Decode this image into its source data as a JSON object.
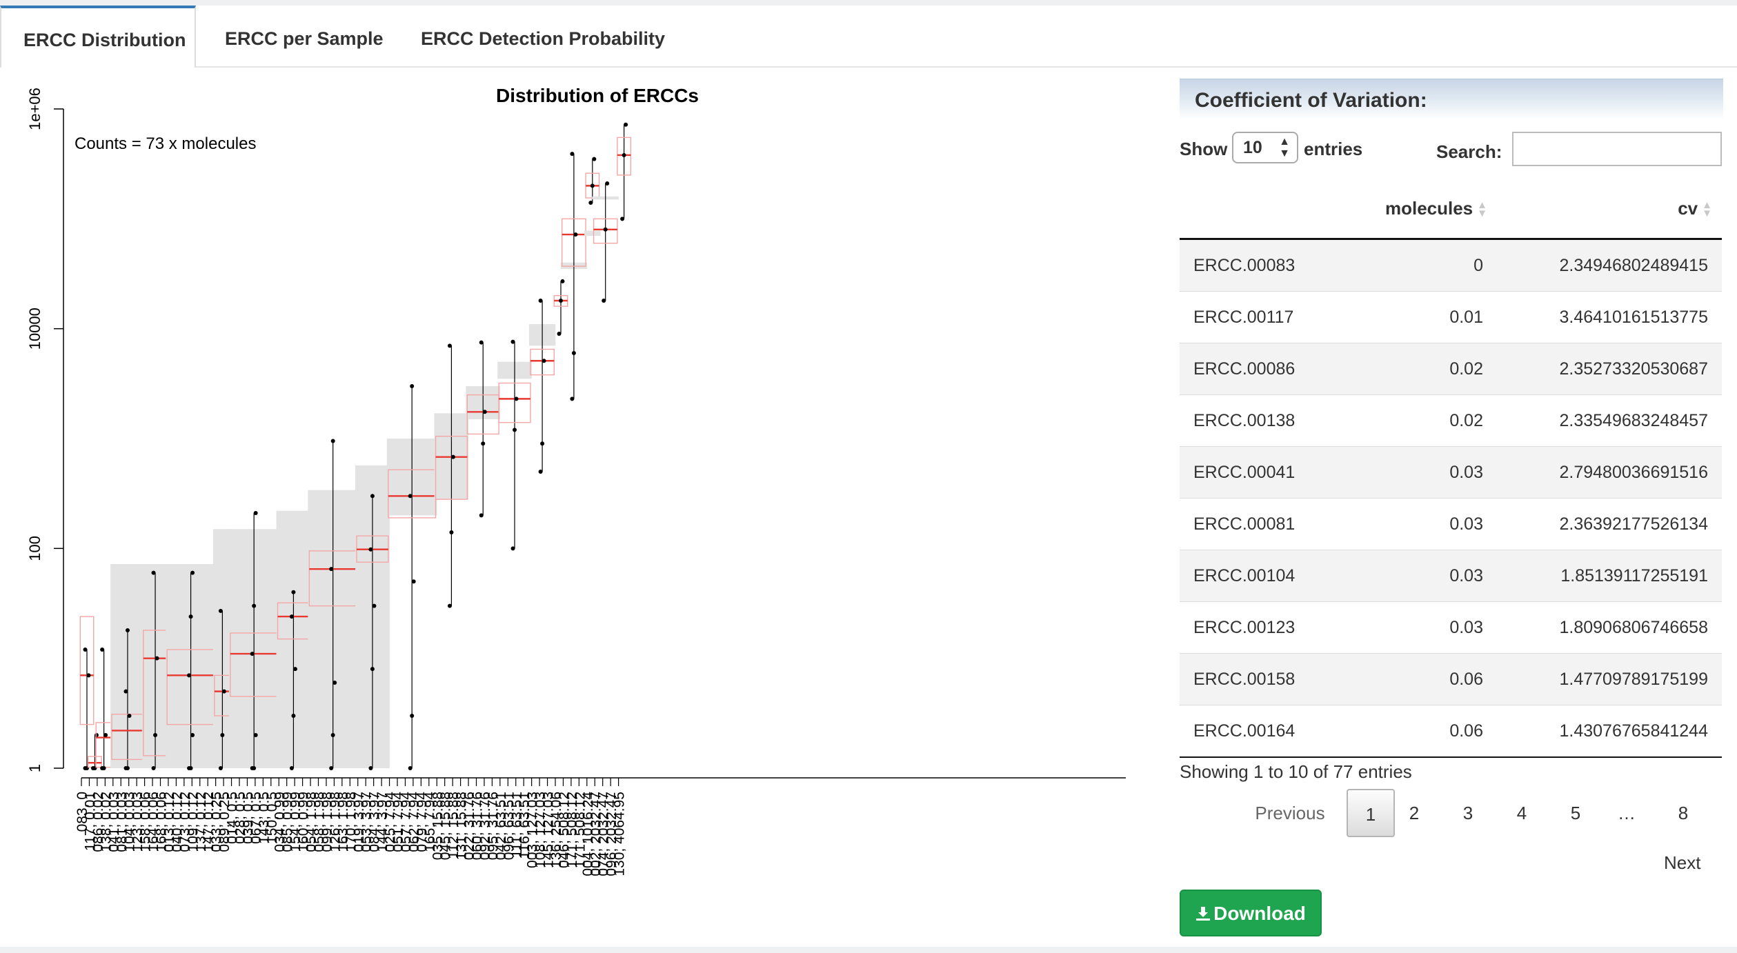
{
  "tabs": [
    {
      "label": "ERCC Distribution",
      "active": true
    },
    {
      "label": "ERCC per Sample",
      "active": false
    },
    {
      "label": "ERCC Detection Probability",
      "active": false
    }
  ],
  "chart_data": {
    "type": "box",
    "title": "Distribution of ERCCs",
    "annotation": "Counts = 73 x molecules",
    "y_scale": "log10",
    "ylim": [
      1,
      1000000
    ],
    "y_ticks": [
      {
        "value": 1,
        "label": "1"
      },
      {
        "value": 100,
        "label": "100"
      },
      {
        "value": 10000,
        "label": "10000"
      },
      {
        "value": 1000000,
        "label": "1e+06"
      }
    ],
    "groups": [
      {
        "labels": [
          "083, 0"
        ],
        "median": 7,
        "q1": 2.5,
        "q3": 24,
        "gray": null,
        "pts": [
          1,
          1,
          7,
          12
        ]
      },
      {
        "labels": [
          "117, 0.01"
        ],
        "median": 1.12,
        "q1": 1.02,
        "q3": 1.28,
        "gray": null,
        "pts": [
          1,
          1,
          2
        ]
      },
      {
        "labels": [
          "086, 0.02",
          "138, 0.02"
        ],
        "median": 1.9,
        "q1": 1.02,
        "q3": 2.6,
        "gray": null,
        "pts": [
          1,
          1,
          2,
          12
        ]
      },
      {
        "labels": [
          "041, 0.03",
          "081, 0.03",
          "104, 0.03",
          "123, 0.03"
        ],
        "median": 2.2,
        "q1": 1.2,
        "q3": 3.1,
        "gray": [
          1,
          72
        ],
        "pts": [
          1,
          1,
          3,
          5,
          18
        ]
      },
      {
        "labels": [
          "158, 0.06",
          "164, 0.06",
          "168, 0.06"
        ],
        "median": 10,
        "q1": 1.3,
        "q3": 18,
        "gray": [
          1,
          72
        ],
        "pts": [
          1,
          2,
          10,
          60
        ]
      },
      {
        "labels": [
          "013, 0.12",
          "040, 0.12",
          "073, 0.12",
          "109, 0.12",
          "137, 0.12",
          "147, 0.12"
        ],
        "median": 7,
        "q1": 2.5,
        "q3": 12,
        "gray": [
          1,
          72
        ],
        "pts": [
          1,
          1,
          2,
          7,
          24,
          60
        ]
      },
      {
        "labels": [
          "033, 0.25",
          "089, 0.25"
        ],
        "median": 5,
        "q1": 3,
        "q3": 7,
        "gray": [
          1,
          150
        ],
        "pts": [
          1,
          2,
          5,
          27
        ]
      },
      {
        "labels": [
          "014, 0.5",
          "028, 0.5",
          "039, 0.5",
          "067, 0.5",
          "143, 0.5",
          "150, 0.5"
        ],
        "median": 11,
        "q1": 4.5,
        "q3": 17,
        "gray": [
          1,
          150
        ],
        "pts": [
          1,
          1,
          2,
          11,
          30,
          210
        ]
      },
      {
        "labels": [
          "034, 0.99",
          "085, 0.99",
          "154, 0.99",
          "160, 0.99"
        ],
        "median": 24,
        "q1": 15,
        "q3": 32,
        "gray": [
          1,
          220
        ],
        "pts": [
          1,
          3,
          8,
          24,
          40
        ]
      },
      {
        "labels": [
          "054, 1.98",
          "058, 1.98",
          "099, 1.98",
          "126, 1.98",
          "163, 1.98",
          "170, 1.98"
        ],
        "median": 65,
        "q1": 30,
        "q3": 95,
        "gray": [
          1,
          340
        ],
        "pts": [
          1,
          2,
          6,
          65,
          950
        ]
      },
      {
        "labels": [
          "019, 3.97",
          "053, 3.97",
          "084, 3.97",
          "144, 3.97"
        ],
        "median": 98,
        "q1": 75,
        "q3": 130,
        "gray": [
          1,
          570
        ],
        "pts": [
          1,
          8,
          30,
          98,
          300
        ]
      },
      {
        "labels": [
          "025, 7.94",
          "051, 7.94",
          "057, 7.94",
          "062, 7.94",
          "079, 7.94",
          "165, 7.94"
        ],
        "median": 300,
        "q1": 190,
        "q3": 520,
        "gray": [
          200,
          1000
        ],
        "pts": [
          1,
          3,
          50,
          300,
          3000
        ]
      },
      {
        "labels": [
          "035, 15.88",
          "045, 15.88",
          "112, 15.88",
          "131, 15.88"
        ],
        "median": 680,
        "q1": 280,
        "q3": 1050,
        "gray": [
          280,
          1700
        ],
        "pts": [
          30,
          140,
          680,
          7000
        ]
      },
      {
        "labels": [
          "022, 31.76",
          "060, 31.76",
          "092, 31.76",
          "095, 31.76"
        ],
        "median": 1750,
        "q1": 1100,
        "q3": 2500,
        "gray": [
          1500,
          3000
        ],
        "pts": [
          200,
          900,
          1750,
          7500
        ]
      },
      {
        "labels": [
          "042, 63.51",
          "096, 63.51",
          "111, 63.51",
          "116, 63.51"
        ],
        "median": 2300,
        "q1": 1400,
        "q3": 3200,
        "gray": [
          3500,
          5000
        ],
        "pts": [
          100,
          1200,
          2300,
          7600
        ]
      },
      {
        "labels": [
          "003, 127.03",
          "108, 127.03",
          "145, 127.03"
        ],
        "median": 5100,
        "q1": 3800,
        "q3": 6500,
        "gray": [
          7000,
          11000
        ],
        "pts": [
          500,
          900,
          5100,
          18000
        ]
      },
      {
        "labels": [
          "136, 254.06"
        ],
        "median": 18000,
        "q1": 16000,
        "q3": 20000,
        "gray": null,
        "pts": [
          9000,
          18000,
          27000
        ]
      },
      {
        "labels": [
          "046, 508.12",
          "171, 508.12",
          "171, 508.12"
        ],
        "median": 72000,
        "q1": 37000,
        "q3": 100000,
        "gray": [
          35000,
          40000
        ],
        "pts": [
          2300,
          6000,
          72000,
          390000
        ]
      },
      {
        "labels": [
          "004, 1016.24"
        ],
        "median": 200000,
        "q1": 155000,
        "q3": 260000,
        "gray": [
          70000,
          78000
        ],
        "pts": [
          140000,
          200000,
          350000
        ]
      },
      {
        "labels": [
          "002, 2032.47",
          "074, 2032.47",
          "096, 2032.47"
        ],
        "median": 80000,
        "q1": 60000,
        "q3": 100000,
        "gray": [
          150000,
          160000
        ],
        "pts": [
          18000,
          80000,
          210000
        ]
      },
      {
        "labels": [
          "130, 4064.95"
        ],
        "median": 380000,
        "q1": 250000,
        "q3": 550000,
        "gray": null,
        "pts": [
          100000,
          380000,
          720000
        ]
      }
    ]
  },
  "panel": {
    "title": "Coefficient of Variation:",
    "show_label": "Show",
    "length_value": "10",
    "entries_label": "entries",
    "search_label": "Search:",
    "search_value": "",
    "columns": [
      "molecules",
      "cv"
    ],
    "rows": [
      {
        "name": "ERCC.00083",
        "molecules": "0",
        "cv": "2.34946802489415"
      },
      {
        "name": "ERCC.00117",
        "molecules": "0.01",
        "cv": "3.46410161513775"
      },
      {
        "name": "ERCC.00086",
        "molecules": "0.02",
        "cv": "2.35273320530687"
      },
      {
        "name": "ERCC.00138",
        "molecules": "0.02",
        "cv": "2.33549683248457"
      },
      {
        "name": "ERCC.00041",
        "molecules": "0.03",
        "cv": "2.79480036691516"
      },
      {
        "name": "ERCC.00081",
        "molecules": "0.03",
        "cv": "2.36392177526134"
      },
      {
        "name": "ERCC.00104",
        "molecules": "0.03",
        "cv": "1.85139117255191"
      },
      {
        "name": "ERCC.00123",
        "molecules": "0.03",
        "cv": "1.80906806746658"
      },
      {
        "name": "ERCC.00158",
        "molecules": "0.06",
        "cv": "1.47709789175199"
      },
      {
        "name": "ERCC.00164",
        "molecules": "0.06",
        "cv": "1.43076765841244"
      }
    ],
    "info": "Showing 1 to 10 of 77 entries",
    "pager": {
      "previous": "Previous",
      "pages": [
        "1",
        "2",
        "3",
        "4",
        "5",
        "…",
        "8"
      ],
      "current": "1",
      "next": "Next"
    },
    "download_label": "Download"
  }
}
